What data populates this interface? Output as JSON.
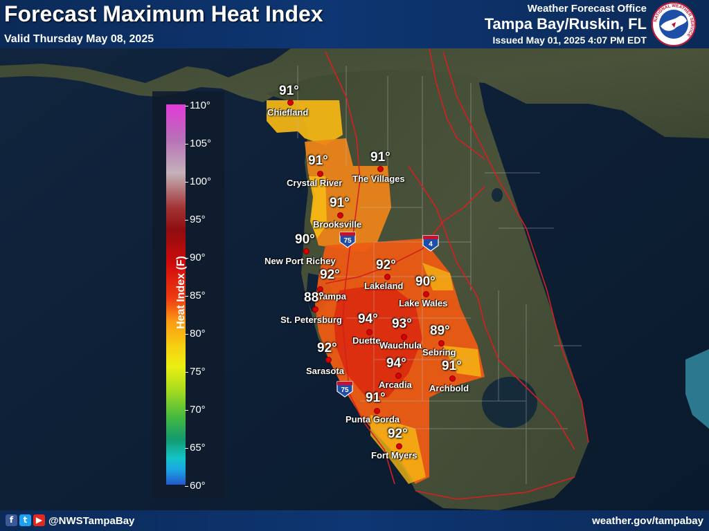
{
  "header": {
    "title": "Forecast Maximum Heat Index",
    "valid": "Valid Thursday May 08, 2025",
    "office_line": "Weather Forecast Office",
    "office_name": "Tampa Bay/Ruskin, FL",
    "issued": "Issued May 01, 2025 4:07 PM EDT"
  },
  "logo": {
    "ring_text": "NATIONAL WEATHER SERVICE",
    "icon": "nws-logo-icon"
  },
  "legend": {
    "title": "Heat Index (F)",
    "ticks": [
      "110°",
      "105°",
      "100°",
      "95°",
      "90°",
      "85°",
      "80°",
      "75°",
      "70°",
      "65°",
      "60°"
    ],
    "range": [
      60,
      110
    ]
  },
  "interstates": [
    {
      "id": "i75-north",
      "label": "75"
    },
    {
      "id": "i4",
      "label": "4"
    },
    {
      "id": "i75-south",
      "label": "75"
    }
  ],
  "cities": [
    {
      "name": "Chiefland",
      "value": "91°"
    },
    {
      "name": "Crystal River",
      "value": "91°"
    },
    {
      "name": "The Villages",
      "value": "91°"
    },
    {
      "name": "Brooksville",
      "value": "91°"
    },
    {
      "name": "New Port Richey",
      "value": "90°"
    },
    {
      "name": "Tampa",
      "value": "92°"
    },
    {
      "name": "Lakeland",
      "value": "92°"
    },
    {
      "name": "Lake Wales",
      "value": "90°"
    },
    {
      "name": "St. Petersburg",
      "value": "88°"
    },
    {
      "name": "Duette",
      "value": "94°"
    },
    {
      "name": "Wauchula",
      "value": "93°"
    },
    {
      "name": "Sebring",
      "value": "89°"
    },
    {
      "name": "Sarasota",
      "value": "92°"
    },
    {
      "name": "Arcadia",
      "value": "94°"
    },
    {
      "name": "Archbold",
      "value": "91°"
    },
    {
      "name": "Punta Gorda",
      "value": "91°"
    },
    {
      "name": "Fort Myers",
      "value": "92°"
    }
  ],
  "footer": {
    "social_icons": [
      "facebook-icon",
      "twitter-icon",
      "youtube-icon"
    ],
    "handle": "@NWSTampaBay",
    "website": "weather.gov/tampabay"
  },
  "colors": {
    "banner": "#0e3673",
    "ocean": "#0c1e33",
    "heat_orange": "#ef5a12",
    "heat_red": "#d9280e",
    "heat_yellow": "#f6b813",
    "road": "#d42020"
  }
}
